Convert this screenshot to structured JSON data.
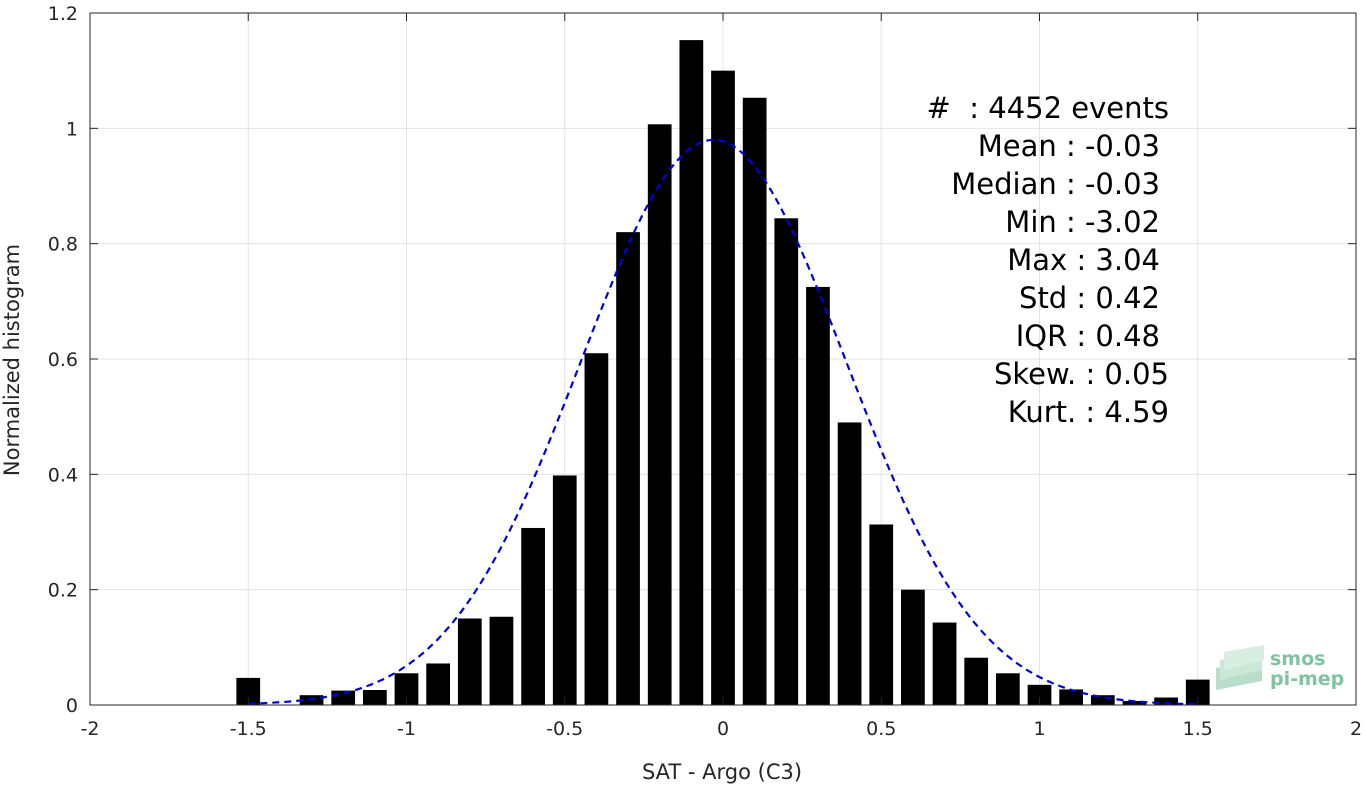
{
  "chart_data": {
    "type": "bar",
    "xlabel": "SAT - Argo (C3)",
    "ylabel": "Normalized histogram",
    "xlim": [
      -2,
      2
    ],
    "ylim": [
      0,
      1.2
    ],
    "xticks": [
      "-2",
      "-1.5",
      "-1",
      "-0.5",
      "0",
      "0.5",
      "1",
      "1.5",
      "2"
    ],
    "yticks": [
      "0",
      "0.2",
      "0.4",
      "0.6",
      "0.8",
      "1",
      "1.2"
    ],
    "grid": true,
    "bin_width": 0.1,
    "bars": {
      "x": [
        -1.5,
        -1.3,
        -1.2,
        -1.1,
        -1.0,
        -0.9,
        -0.8,
        -0.7,
        -0.6,
        -0.5,
        -0.4,
        -0.3,
        -0.2,
        -0.1,
        0.0,
        0.1,
        0.2,
        0.3,
        0.4,
        0.5,
        0.6,
        0.7,
        0.8,
        0.9,
        1.0,
        1.1,
        1.2,
        1.3,
        1.4,
        1.5
      ],
      "values": [
        0.047,
        0.017,
        0.025,
        0.026,
        0.055,
        0.072,
        0.15,
        0.153,
        0.307,
        0.398,
        0.61,
        0.82,
        1.007,
        1.153,
        1.1,
        1.053,
        0.844,
        0.725,
        0.49,
        0.313,
        0.2,
        0.143,
        0.082,
        0.055,
        0.035,
        0.027,
        0.017,
        0.007,
        0.013,
        0.044
      ],
      "color": "#000000"
    },
    "fit_curve": {
      "style": "dashed",
      "color": "#0000dd",
      "distribution": "normal",
      "mean": -0.03,
      "std": 0.42,
      "amplitude": 0.98,
      "x_range": [
        -1.5,
        1.5
      ]
    },
    "stats": [
      {
        "label": "#  : 4452 events"
      },
      {
        "label": "Mean : -0.03"
      },
      {
        "label": "Median : -0.03"
      },
      {
        "label": "Min : -3.02"
      },
      {
        "label": "Max : 3.04"
      },
      {
        "label": "Std : 0.42"
      },
      {
        "label": "IQR : 0.48"
      },
      {
        "label": "Skew. : 0.05"
      },
      {
        "label": "Kurt. : 4.59"
      }
    ]
  },
  "logo": {
    "line1": "smos",
    "line2": "pi-mep",
    "icon": "layered-map-icon",
    "color": "#7fc4a0"
  }
}
